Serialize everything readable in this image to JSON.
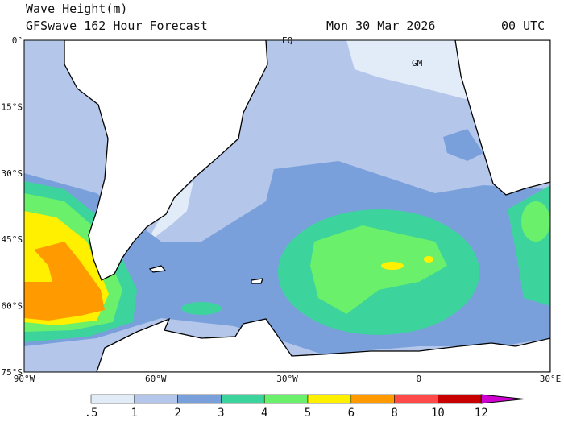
{
  "header": {
    "title": "Wave Height(m)",
    "subtitle": "GFSwave 162 Hour Forecast",
    "date": "Mon 30 Mar 2026",
    "time": "00 UTC"
  },
  "map": {
    "lat_labels": [
      "0°",
      "15°S",
      "30°S",
      "45°S",
      "60°S",
      "75°S"
    ],
    "lon_labels": [
      "90°W",
      "60°W",
      "30°W",
      "0",
      "30°E"
    ],
    "markers": [
      "EQ",
      "GM"
    ]
  },
  "colorbar": {
    "colors": [
      "#ffffff",
      "#e2ecf8",
      "#b4c7ea",
      "#7aa0dc",
      "#3dd39c",
      "#6af06a",
      "#fff000",
      "#ff9a00",
      "#ff4a4a",
      "#c80000",
      "#d000d0"
    ],
    "ticks": [
      {
        "value": 0.5,
        "label": ".5"
      },
      1,
      2,
      3,
      4,
      5,
      6,
      8,
      10,
      12
    ]
  }
}
